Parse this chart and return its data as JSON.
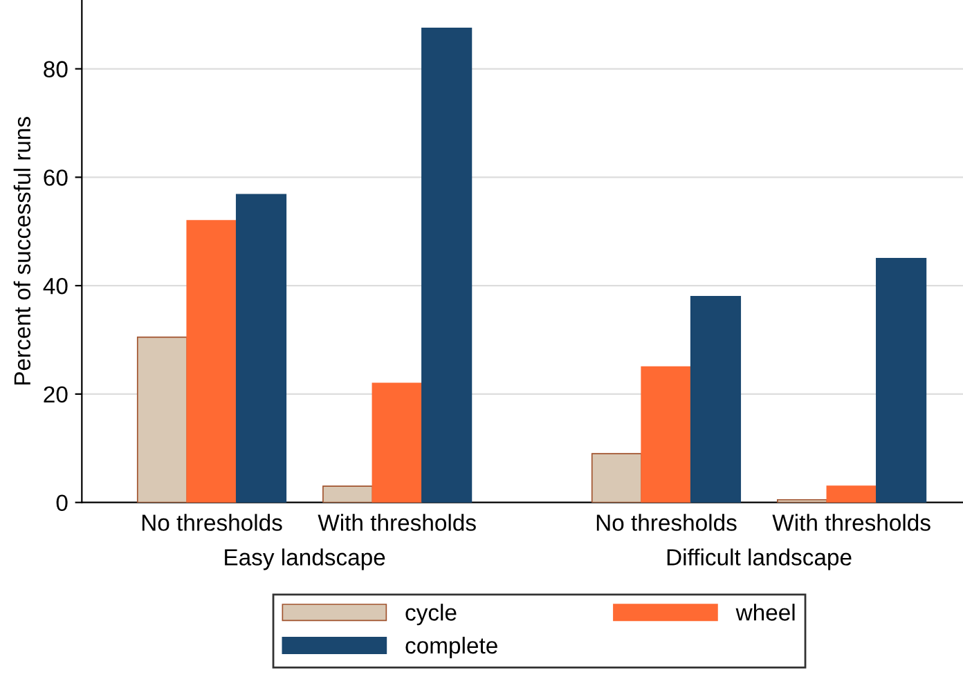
{
  "chart_data": {
    "type": "bar",
    "ylabel": "Percent of successful runs",
    "categories": [
      "No thresholds",
      "With thresholds",
      "No thresholds",
      "With thresholds"
    ],
    "annotations": [
      "Easy landscape",
      "Difficult landscape"
    ],
    "series": [
      {
        "name": "cycle",
        "color": "#d9c8b4",
        "values": [
          30.5,
          3,
          9,
          0.5
        ]
      },
      {
        "name": "wheel",
        "color": "#ff6a33",
        "values": [
          52,
          22,
          25,
          3
        ]
      },
      {
        "name": "complete",
        "color": "#1a476f",
        "values": [
          56.8,
          87.5,
          38,
          45
        ]
      }
    ],
    "ylim": [
      0,
      92.7
    ],
    "yticks": [
      0,
      20,
      40,
      60,
      80
    ],
    "grid": "y",
    "legend": "bottom"
  }
}
